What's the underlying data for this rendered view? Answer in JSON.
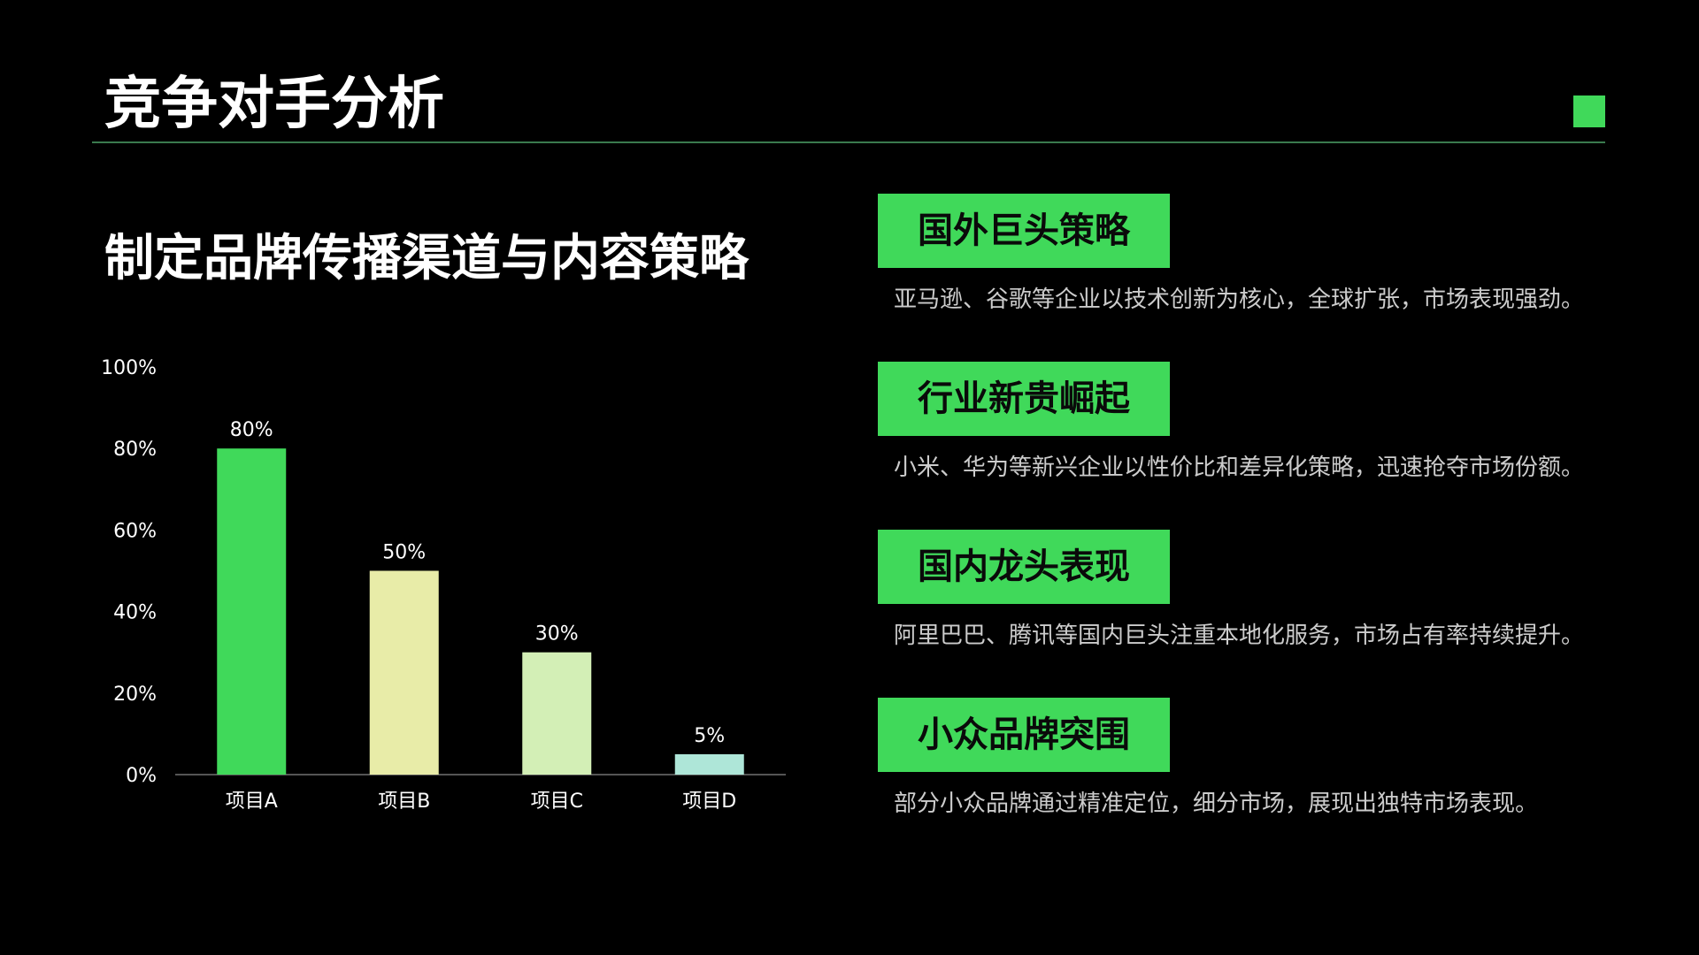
{
  "slide": {
    "title": "竞争对手分析",
    "subtitle": "制定品牌传播渠道与内容策略"
  },
  "colors": {
    "background": "#000000",
    "accent": "#40d95a",
    "rule": "#3a7a4e",
    "label_text": "#0a0a0a",
    "body_text": "#cccccc"
  },
  "chart_data": {
    "type": "bar",
    "categories": [
      "项目A",
      "项目B",
      "项目C",
      "项目D"
    ],
    "values": [
      80,
      50,
      30,
      5
    ],
    "value_labels": [
      "80%",
      "50%",
      "30%",
      "5%"
    ],
    "bar_colors": [
      "#40d95a",
      "#e8eca8",
      "#d3efb6",
      "#aee6d8"
    ],
    "y_ticks": [
      "0%",
      "20%",
      "40%",
      "60%",
      "80%",
      "100%"
    ],
    "y_tick_values": [
      0,
      20,
      40,
      60,
      80,
      100
    ],
    "ylim": [
      0,
      100
    ],
    "grid": false,
    "legend": "none"
  },
  "cards": [
    {
      "label": "国外巨头策略",
      "text": "亚马逊、谷歌等企业以技术创新为核心，全球扩张，市场表现强劲。"
    },
    {
      "label": "行业新贵崛起",
      "text": "小米、华为等新兴企业以性价比和差异化策略，迅速抢夺市场份额。"
    },
    {
      "label": "国内龙头表现",
      "text": "阿里巴巴、腾讯等国内巨头注重本地化服务，市场占有率持续提升。"
    },
    {
      "label": "小众品牌突围",
      "text": "部分小众品牌通过精准定位，细分市场，展现出独特市场表现。"
    }
  ]
}
